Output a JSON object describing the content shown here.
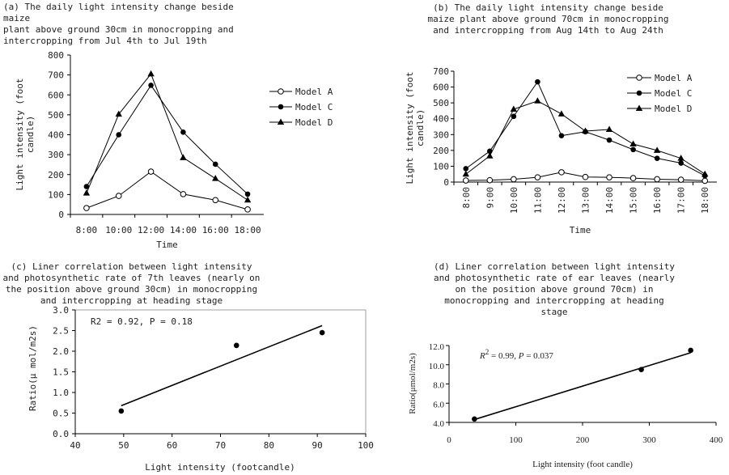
{
  "chart_data": [
    {
      "id": "a",
      "type": "line",
      "title": "(a) The daily light intensity change beside maize\nplant above ground 30cm in monocropping and\nintercropping from Jul 4th to Jul 19th",
      "xlabel": "Time",
      "ylabel": "Light intensity (foot\ncandle)",
      "categories": [
        "8:00",
        "10:00",
        "12:00",
        "14:00",
        "16:00",
        "18:00"
      ],
      "ylim": [
        0,
        800
      ],
      "yticks": [
        "0",
        "100",
        "200",
        "300",
        "400",
        "500",
        "600",
        "700",
        "800"
      ],
      "legend_position": "right",
      "series": [
        {
          "name": "Model A",
          "marker": "open-circle",
          "values": [
            32,
            93,
            215,
            102,
            72,
            25
          ]
        },
        {
          "name": "Model C",
          "marker": "filled-circle",
          "values": [
            140,
            400,
            648,
            413,
            252,
            102
          ]
        },
        {
          "name": "Model D",
          "marker": "triangle",
          "values": [
            107,
            503,
            705,
            285,
            180,
            72
          ]
        }
      ]
    },
    {
      "id": "b",
      "type": "line",
      "title": "(b) The daily light intensity change beside\nmaize plant above ground 70cm in monocropping\nand intercropping from Aug 14th to Aug 24th",
      "xlabel": "Time",
      "ylabel": "Light intensity (foot\ncandle)",
      "categories": [
        "8:00",
        "9:00",
        "10:00",
        "11:00",
        "12:00",
        "13:00",
        "14:00",
        "15:00",
        "16:00",
        "17:00",
        "18:00"
      ],
      "ylim": [
        0,
        700
      ],
      "yticks": [
        "0",
        "100",
        "200",
        "300",
        "400",
        "500",
        "600",
        "700"
      ],
      "legend_position": "top-right",
      "series": [
        {
          "name": "Model A",
          "marker": "open-circle",
          "values": [
            10,
            12,
            18,
            30,
            62,
            32,
            30,
            25,
            18,
            15,
            8
          ]
        },
        {
          "name": "Model C",
          "marker": "filled-circle",
          "values": [
            85,
            195,
            415,
            633,
            293,
            318,
            265,
            205,
            150,
            120,
            40
          ]
        },
        {
          "name": "Model D",
          "marker": "triangle",
          "values": [
            50,
            165,
            460,
            512,
            430,
            322,
            332,
            240,
            200,
            150,
            50
          ]
        }
      ]
    },
    {
      "id": "c",
      "type": "scatter",
      "title": "(c) Liner correlation between light intensity\nand photosynthetic rate of 7th leaves (nearly on\nthe position above ground 30cm) in monocropping\nand intercropping at heading stage",
      "xlabel": "Light intensity (footcandle)",
      "ylabel": "Ratio(μ mol/m2s)",
      "xlim": [
        40,
        100
      ],
      "xticks": [
        "40",
        "50",
        "60",
        "70",
        "80",
        "90",
        "100"
      ],
      "ylim": [
        0,
        3
      ],
      "yticks": [
        "0.0",
        "0.5",
        "1.0",
        "1.5",
        "2.0",
        "2.5",
        "3.0"
      ],
      "annotation": "R2 = 0.92, P = 0.18",
      "points": [
        {
          "x": 49.5,
          "y": 0.55
        },
        {
          "x": 73.3,
          "y": 2.14
        },
        {
          "x": 91,
          "y": 2.45
        }
      ],
      "trendline": [
        {
          "x": 49.5,
          "y": 0.68
        },
        {
          "x": 91,
          "y": 2.62
        }
      ]
    },
    {
      "id": "d",
      "type": "scatter",
      "title": "(d) Liner correlation between light intensity\nand photosynthetic rate of ear leaves (nearly\non the position above ground 70cm) in\nmonocropping and intercropping at heading\nstage",
      "xlabel": "Light intensity (foot candle)",
      "ylabel": "Ratio(μmol/m2s)",
      "xlim": [
        0,
        400
      ],
      "xticks": [
        "0",
        "100",
        "200",
        "300",
        "400"
      ],
      "ylim": [
        4,
        12
      ],
      "yticks": [
        "4.0",
        "6.0",
        "8.0",
        "10.0",
        "12.0"
      ],
      "annotation_r": "R",
      "annotation_sup": "2",
      "annotation_rest": " = 0.99, ",
      "annotation_p": "P",
      "annotation_pval": " = 0.037",
      "points": [
        {
          "x": 38,
          "y": 4.35
        },
        {
          "x": 288,
          "y": 9.5
        },
        {
          "x": 362,
          "y": 11.5
        }
      ],
      "trendline": [
        {
          "x": 38,
          "y": 4.3
        },
        {
          "x": 362,
          "y": 11.25
        }
      ]
    }
  ]
}
